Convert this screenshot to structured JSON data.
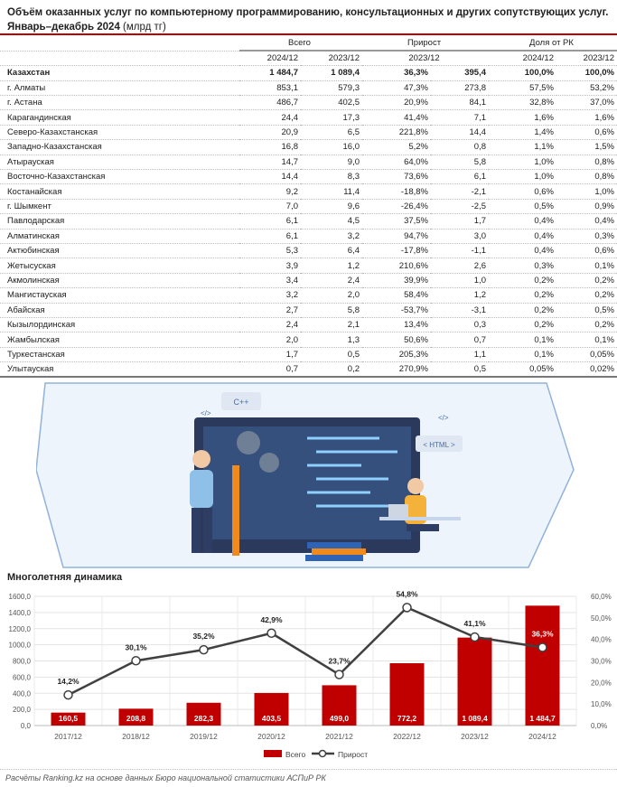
{
  "title": {
    "line1": "Объём оказанных услуг по компьютерному программированию, консультационных и других сопутствующих услуг.",
    "line2": "Январь–декабрь 2024",
    "unit": " (млрд тг)"
  },
  "table": {
    "groups": [
      "Всего",
      "Прирост",
      "Доля от РК"
    ],
    "subheaders": [
      "2024/12",
      "2023/12",
      "2023/12",
      "2024/12",
      "2023/12"
    ],
    "rows": [
      [
        "Казахстан",
        "1 484,7",
        "1 089,4",
        "36,3%",
        "395,4",
        "100,0%",
        "100,0%"
      ],
      [
        "г. Алматы",
        "853,1",
        "579,3",
        "47,3%",
        "273,8",
        "57,5%",
        "53,2%"
      ],
      [
        "г. Астана",
        "486,7",
        "402,5",
        "20,9%",
        "84,1",
        "32,8%",
        "37,0%"
      ],
      [
        "Карагандинская",
        "24,4",
        "17,3",
        "41,4%",
        "7,1",
        "1,6%",
        "1,6%"
      ],
      [
        "Северо-Казахстанская",
        "20,9",
        "6,5",
        "221,8%",
        "14,4",
        "1,4%",
        "0,6%"
      ],
      [
        "Западно-Казахстанская",
        "16,8",
        "16,0",
        "5,2%",
        "0,8",
        "1,1%",
        "1,5%"
      ],
      [
        "Атырауская",
        "14,7",
        "9,0",
        "64,0%",
        "5,8",
        "1,0%",
        "0,8%"
      ],
      [
        "Восточно-Казахстанская",
        "14,4",
        "8,3",
        "73,6%",
        "6,1",
        "1,0%",
        "0,8%"
      ],
      [
        "Костанайская",
        "9,2",
        "11,4",
        "-18,8%",
        "-2,1",
        "0,6%",
        "1,0%"
      ],
      [
        "г. Шымкент",
        "7,0",
        "9,6",
        "-26,4%",
        "-2,5",
        "0,5%",
        "0,9%"
      ],
      [
        "Павлодарская",
        "6,1",
        "4,5",
        "37,5%",
        "1,7",
        "0,4%",
        "0,4%"
      ],
      [
        "Алматинская",
        "6,1",
        "3,2",
        "94,7%",
        "3,0",
        "0,4%",
        "0,3%"
      ],
      [
        "Актюбинская",
        "5,3",
        "6,4",
        "-17,8%",
        "-1,1",
        "0,4%",
        "0,6%"
      ],
      [
        "Жетысуская",
        "3,9",
        "1,2",
        "210,6%",
        "2,6",
        "0,3%",
        "0,1%"
      ],
      [
        "Акмолинская",
        "3,4",
        "2,4",
        "39,9%",
        "1,0",
        "0,2%",
        "0,2%"
      ],
      [
        "Мангистауская",
        "3,2",
        "2,0",
        "58,4%",
        "1,2",
        "0,2%",
        "0,2%"
      ],
      [
        "Абайская",
        "2,7",
        "5,8",
        "-53,7%",
        "-3,1",
        "0,2%",
        "0,5%"
      ],
      [
        "Кызылординская",
        "2,4",
        "2,1",
        "13,4%",
        "0,3",
        "0,2%",
        "0,2%"
      ],
      [
        "Жамбылская",
        "2,0",
        "1,3",
        "50,6%",
        "0,7",
        "0,1%",
        "0,1%"
      ],
      [
        "Туркестанская",
        "1,7",
        "0,5",
        "205,3%",
        "1,1",
        "0,1%",
        "0,05%"
      ],
      [
        "Улытауская",
        "0,7",
        "0,2",
        "270,9%",
        "0,5",
        "0,05%",
        "0,02%"
      ]
    ]
  },
  "illustration": {
    "cpp": "C++",
    "html": "< HTML >",
    "code1": "</>",
    "code2": "</>"
  },
  "chart_data": {
    "type": "bar",
    "title": "Многолетняя динамика",
    "categories": [
      "2017/12",
      "2018/12",
      "2019/12",
      "2020/12",
      "2021/12",
      "2022/12",
      "2023/12",
      "2024/12"
    ],
    "series": [
      {
        "name": "Всего",
        "type": "bar",
        "axis": "left",
        "color": "#c00000",
        "values": [
          160.5,
          208.8,
          282.3,
          403.5,
          499.0,
          772.2,
          1089.4,
          1484.7
        ],
        "labels": [
          "160,5",
          "208,8",
          "282,3",
          "403,5",
          "499,0",
          "772,2",
          "1 089,4",
          "1 484,7"
        ]
      },
      {
        "name": "Прирост",
        "type": "line",
        "axis": "right",
        "color": "#404040",
        "values": [
          14.2,
          30.1,
          35.2,
          42.9,
          23.7,
          54.8,
          41.1,
          36.3
        ],
        "labels": [
          "14,2%",
          "30,1%",
          "35,2%",
          "42,9%",
          "23,7%",
          "54,8%",
          "41,1%",
          "36,3%"
        ]
      }
    ],
    "ylim": [
      0,
      1600
    ],
    "yticks": [
      "0,0",
      "200,0",
      "400,0",
      "600,0",
      "800,0",
      "1000,0",
      "1200,0",
      "1400,0",
      "1600,0"
    ],
    "y2lim": [
      0,
      60
    ],
    "y2ticks": [
      "0,0%",
      "10,0%",
      "20,0%",
      "30,0%",
      "40,0%",
      "50,0%",
      "60,0%"
    ],
    "legend": "bottom",
    "grid": true
  },
  "footer": "Расчёты Ranking.kz на основе данных Бюро национальной статистики АСПиР РК"
}
